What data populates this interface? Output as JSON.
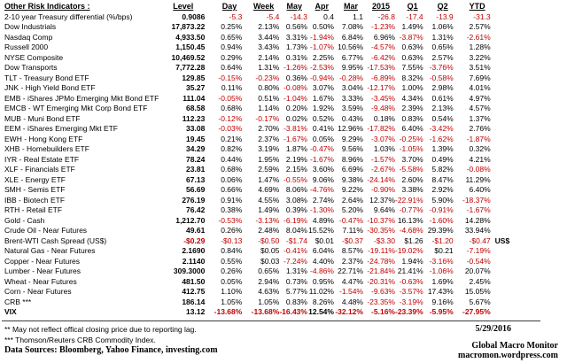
{
  "colors": {
    "negative_value": "#c00000",
    "text": "#000000",
    "background": "#ffffff"
  },
  "chart_data": {
    "type": "table",
    "title": "Other Risk Indicators :",
    "columns": [
      "Level",
      "Day",
      "Week",
      "May",
      "Apr",
      "Mar",
      "2015",
      "Q1",
      "Q2",
      "YTD"
    ],
    "rows": [
      {
        "label": "2-10 year Treasury differential (%/bps)",
        "values": [
          "0.9086",
          "-5.3",
          "-5.4",
          "-14.3",
          "0.4",
          "1.1",
          "-26.8",
          "-17.4",
          "-13.9",
          "-31.3"
        ]
      },
      {
        "label": "Dow Industrials",
        "values": [
          "17,873.22",
          "0.25%",
          "2.13%",
          "0.56%",
          "0.50%",
          "7.08%",
          "-1.23%",
          "1.49%",
          "1.06%",
          "2.57%"
        ]
      },
      {
        "label": "Nasdaq Comp",
        "values": [
          "4,933.50",
          "0.65%",
          "3.44%",
          "3.31%",
          "-1.94%",
          "6.84%",
          "6.96%",
          "-3.87%",
          "1.31%",
          "-2.61%"
        ]
      },
      {
        "label": "Russell 2000",
        "values": [
          "1,150.45",
          "0.94%",
          "3.43%",
          "1.73%",
          "-1.07%",
          "10.56%",
          "-4.57%",
          "0.63%",
          "0.65%",
          "1.28%"
        ]
      },
      {
        "label": "NYSE Composite",
        "values": [
          "10,469.52",
          "0.29%",
          "2.14%",
          "0.31%",
          "2.25%",
          "6.77%",
          "-6.42%",
          "0.63%",
          "2.57%",
          "3.22%"
        ]
      },
      {
        "label": "Dow Transports",
        "values": [
          "7,772.28",
          "0.64%",
          "1.31%",
          "-1.26%",
          "-2.53%",
          "9.95%",
          "-17.53%",
          "7.55%",
          "-3.76%",
          "3.51%"
        ]
      },
      {
        "label": "TLT - Treasury Bond ETF",
        "values": [
          "129.85",
          "-0.15%",
          "-0.23%",
          "0.36%",
          "-0.94%",
          "-0.28%",
          "-6.89%",
          "8.32%",
          "-0.58%",
          "7.69%"
        ]
      },
      {
        "label": "JNK - High Yield Bond ETF",
        "values": [
          "35.27",
          "0.11%",
          "0.80%",
          "-0.08%",
          "3.07%",
          "3.04%",
          "-12.17%",
          "1.00%",
          "2.98%",
          "4.01%"
        ]
      },
      {
        "label": "EMB - iShares JPMo Emerging Mkt Bond ETF",
        "values": [
          "111.04",
          "-0.05%",
          "0.51%",
          "-1.04%",
          "1.67%",
          "3.33%",
          "-3.45%",
          "4.34%",
          "0.61%",
          "4.97%"
        ]
      },
      {
        "label": "EMCB - WT Emerging Mkt Corp Bond ETF",
        "values": [
          "68.58",
          "0.68%",
          "1.14%",
          "0.20%",
          "1.92%",
          "3.59%",
          "-9.48%",
          "2.39%",
          "2.13%",
          "4.57%"
        ]
      },
      {
        "label": "MUB - Muni Bond ETF",
        "values": [
          "112.23",
          "-0.12%",
          "-0.17%",
          "0.02%",
          "0.52%",
          "0.43%",
          "0.18%",
          "0.83%",
          "0.54%",
          "1.37%"
        ]
      },
      {
        "label": "EEM - iShares Emerging Mkt ETF",
        "values": [
          "33.08",
          "-0.03%",
          "2.70%",
          "-3.81%",
          "0.41%",
          "12.96%",
          "-17.82%",
          "6.40%",
          "-3.42%",
          "2.76%"
        ]
      },
      {
        "label": "EWH - Hong Kong ETF",
        "values": [
          "19.45",
          "0.21%",
          "2.37%",
          "-1.67%",
          "0.05%",
          "9.29%",
          "-3.07%",
          "-0.25%",
          "-1.62%",
          "-1.87%"
        ]
      },
      {
        "label": "XHB - Homebuilders ETF",
        "values": [
          "34.29",
          "0.82%",
          "3.19%",
          "1.87%",
          "-0.47%",
          "9.56%",
          "1.03%",
          "-1.05%",
          "1.39%",
          "0.32%"
        ]
      },
      {
        "label": "IYR - Real Estate ETF",
        "values": [
          "78.24",
          "0.44%",
          "1.95%",
          "2.19%",
          "-1.67%",
          "8.96%",
          "-1.57%",
          "3.70%",
          "0.49%",
          "4.21%"
        ]
      },
      {
        "label": "XLF - Financials ETF",
        "values": [
          "23.81",
          "0.68%",
          "2.59%",
          "2.15%",
          "3.60%",
          "6.69%",
          "-2.67%",
          "-5.58%",
          "5.82%",
          "-0.08%"
        ]
      },
      {
        "label": "XLE - Energy ETF",
        "values": [
          "67.13",
          "0.06%",
          "1.47%",
          "-0.55%",
          "9.06%",
          "9.38%",
          "-24.14%",
          "2.60%",
          "8.47%",
          "11.29%"
        ]
      },
      {
        "label": "SMH - Semis ETF",
        "values": [
          "56.69",
          "0.66%",
          "4.69%",
          "8.06%",
          "-4.76%",
          "9.22%",
          "-0.90%",
          "3.38%",
          "2.92%",
          "6.40%"
        ]
      },
      {
        "label": "IBB - Biotech ETF",
        "values": [
          "276.19",
          "0.91%",
          "4.55%",
          "3.08%",
          "2.74%",
          "2.64%",
          "12.37%",
          "-22.91%",
          "5.90%",
          "-18.37%"
        ]
      },
      {
        "label": "RTH - Retail ETF",
        "values": [
          "76.42",
          "0.38%",
          "1.49%",
          "0.39%",
          "-1.30%",
          "5.20%",
          "9.64%",
          "-0.77%",
          "-0.91%",
          "-1.67%"
        ]
      },
      {
        "label": "Gold - Cash",
        "values": [
          "1,212.70",
          "-0.53%",
          "-3.13%",
          "-6.19%",
          "4.89%",
          "-0.47%",
          "-10.37%",
          "16.13%",
          "-1.60%",
          "14.28%"
        ]
      },
      {
        "label": "Crude Oil - Near Futures",
        "values": [
          "49.61",
          "0.26%",
          "2.48%",
          "8.04%",
          "15.52%",
          "7.11%",
          "-30.35%",
          "-4.68%",
          "29.39%",
          "33.94%"
        ]
      },
      {
        "label": "Brent-WTI Cash Spread (US$)",
        "values": [
          "-$0.29",
          "-$0.13",
          "-$0.50",
          "-$1.74",
          "$0.01",
          "-$0.37",
          "-$3.30",
          "$1.26",
          "-$1.20",
          "-$0.47"
        ],
        "suffix": "US$"
      },
      {
        "label": "Natural Gas - Near Futures",
        "values": [
          "2.1690",
          "0.84%",
          "$0.05",
          "-0.41%",
          "6.04%",
          "8.57%",
          "-19.11%",
          "-19.02%",
          "$0.21",
          "-7.19%"
        ]
      },
      {
        "label": "Copper - Near Futures",
        "values": [
          "2.1140",
          "0.55%",
          "$0.03",
          "-7.24%",
          "4.40%",
          "2.37%",
          "-24.78%",
          "1.94%",
          "-3.16%",
          "-0.54%"
        ]
      },
      {
        "label": "Lumber - Near Futures",
        "values": [
          "309.3000",
          "0.26%",
          "0.65%",
          "1.31%",
          "-4.86%",
          "22.71%",
          "-21.84%",
          "21.41%",
          "-1.06%",
          "20.07%"
        ]
      },
      {
        "label": "Wheat - Near Futures",
        "values": [
          "481.50",
          "0.05%",
          "2.94%",
          "0.73%",
          "0.95%",
          "4.47%",
          "-20.31%",
          "-0.63%",
          "1.69%",
          "2.45%"
        ]
      },
      {
        "label": "Corn - Near Futures",
        "values": [
          "412.75",
          "1.10%",
          "4.63%",
          "5.77%",
          "11.02%",
          "-1.54%",
          "-9.63%",
          "-3.57%",
          "17.43%",
          "15.05%"
        ]
      },
      {
        "label": "CRB ***",
        "values": [
          "186.14",
          "1.05%",
          "1.05%",
          "0.83%",
          "8.26%",
          "4.48%",
          "-23.35%",
          "-3.19%",
          "9.16%",
          "5.67%"
        ]
      },
      {
        "label": "VIX",
        "values": [
          "13.12",
          "-13.68%",
          "-13.68%",
          "-16.43%",
          "12.54%",
          "-32.12%",
          "-5.16%",
          "-23.39%",
          "-5.95%",
          "-27.95%"
        ],
        "bold": true
      }
    ]
  },
  "footnotes": [
    "**  May not reflect offical closing price due to reporting lag.",
    "*** Thomson/Reuters CRB Commodity Index."
  ],
  "footer": {
    "data_sources": "Data Sources:  Bloomberg,  Yahoo Finance, investing.com",
    "date": "5/29/2016",
    "site_name": "Global Macro Monitor",
    "site_url": "macromon.wordpress.com"
  }
}
